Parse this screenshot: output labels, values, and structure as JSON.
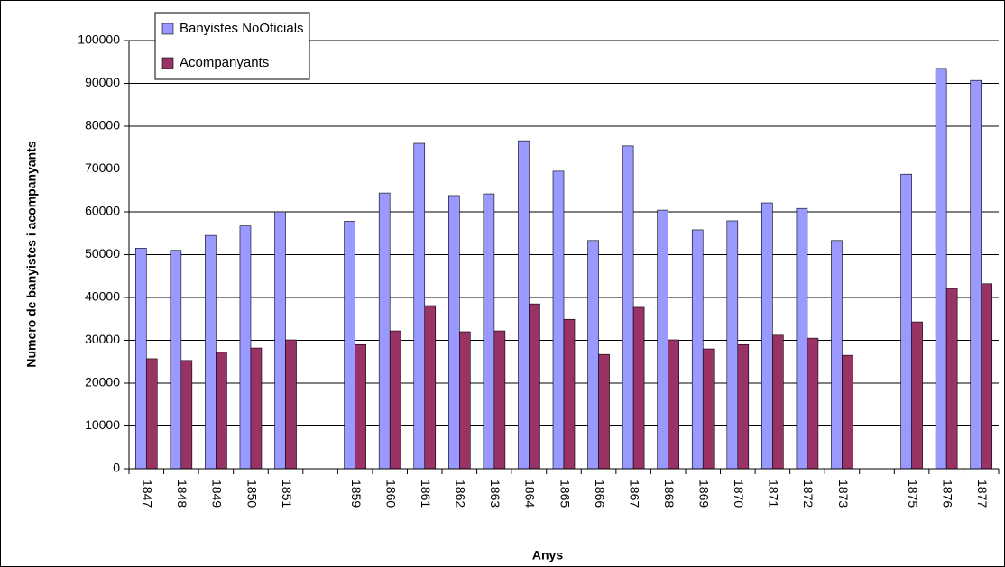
{
  "chart_data": {
    "type": "bar",
    "y_label": "Numero de banyistes i acompanyants",
    "x_label": "Anys",
    "categories": [
      "1847",
      "1848",
      "1849",
      "1850",
      "1851",
      null,
      "1859",
      "1860",
      "1861",
      "1862",
      "1863",
      "1864",
      "1865",
      "1866",
      "1867",
      "1868",
      "1869",
      "1870",
      "1871",
      "1872",
      "1873",
      null,
      "1875",
      "1876",
      "1877"
    ],
    "series": [
      {
        "name": "Banyistes NoOficials",
        "color": "#9999ff",
        "values": [
          51500,
          51000,
          54500,
          56700,
          60000,
          null,
          57800,
          64400,
          76000,
          63800,
          64200,
          76600,
          69500,
          53300,
          75400,
          60400,
          55800,
          57900,
          62100,
          60800,
          53300,
          null,
          68800,
          93500,
          90700
        ]
      },
      {
        "name": "Acompanyants",
        "color": "#993366",
        "values": [
          25700,
          25300,
          27200,
          28200,
          30100,
          null,
          29000,
          32200,
          38100,
          32000,
          32200,
          38500,
          34900,
          26700,
          37700,
          30100,
          28000,
          29000,
          31200,
          30500,
          26500,
          null,
          34300,
          42100,
          43200
        ]
      }
    ],
    "ylim": [
      0,
      100000
    ],
    "yticks": [
      0,
      10000,
      20000,
      30000,
      40000,
      50000,
      60000,
      70000,
      80000,
      90000,
      100000
    ],
    "grid": true,
    "legend": "top-left"
  }
}
